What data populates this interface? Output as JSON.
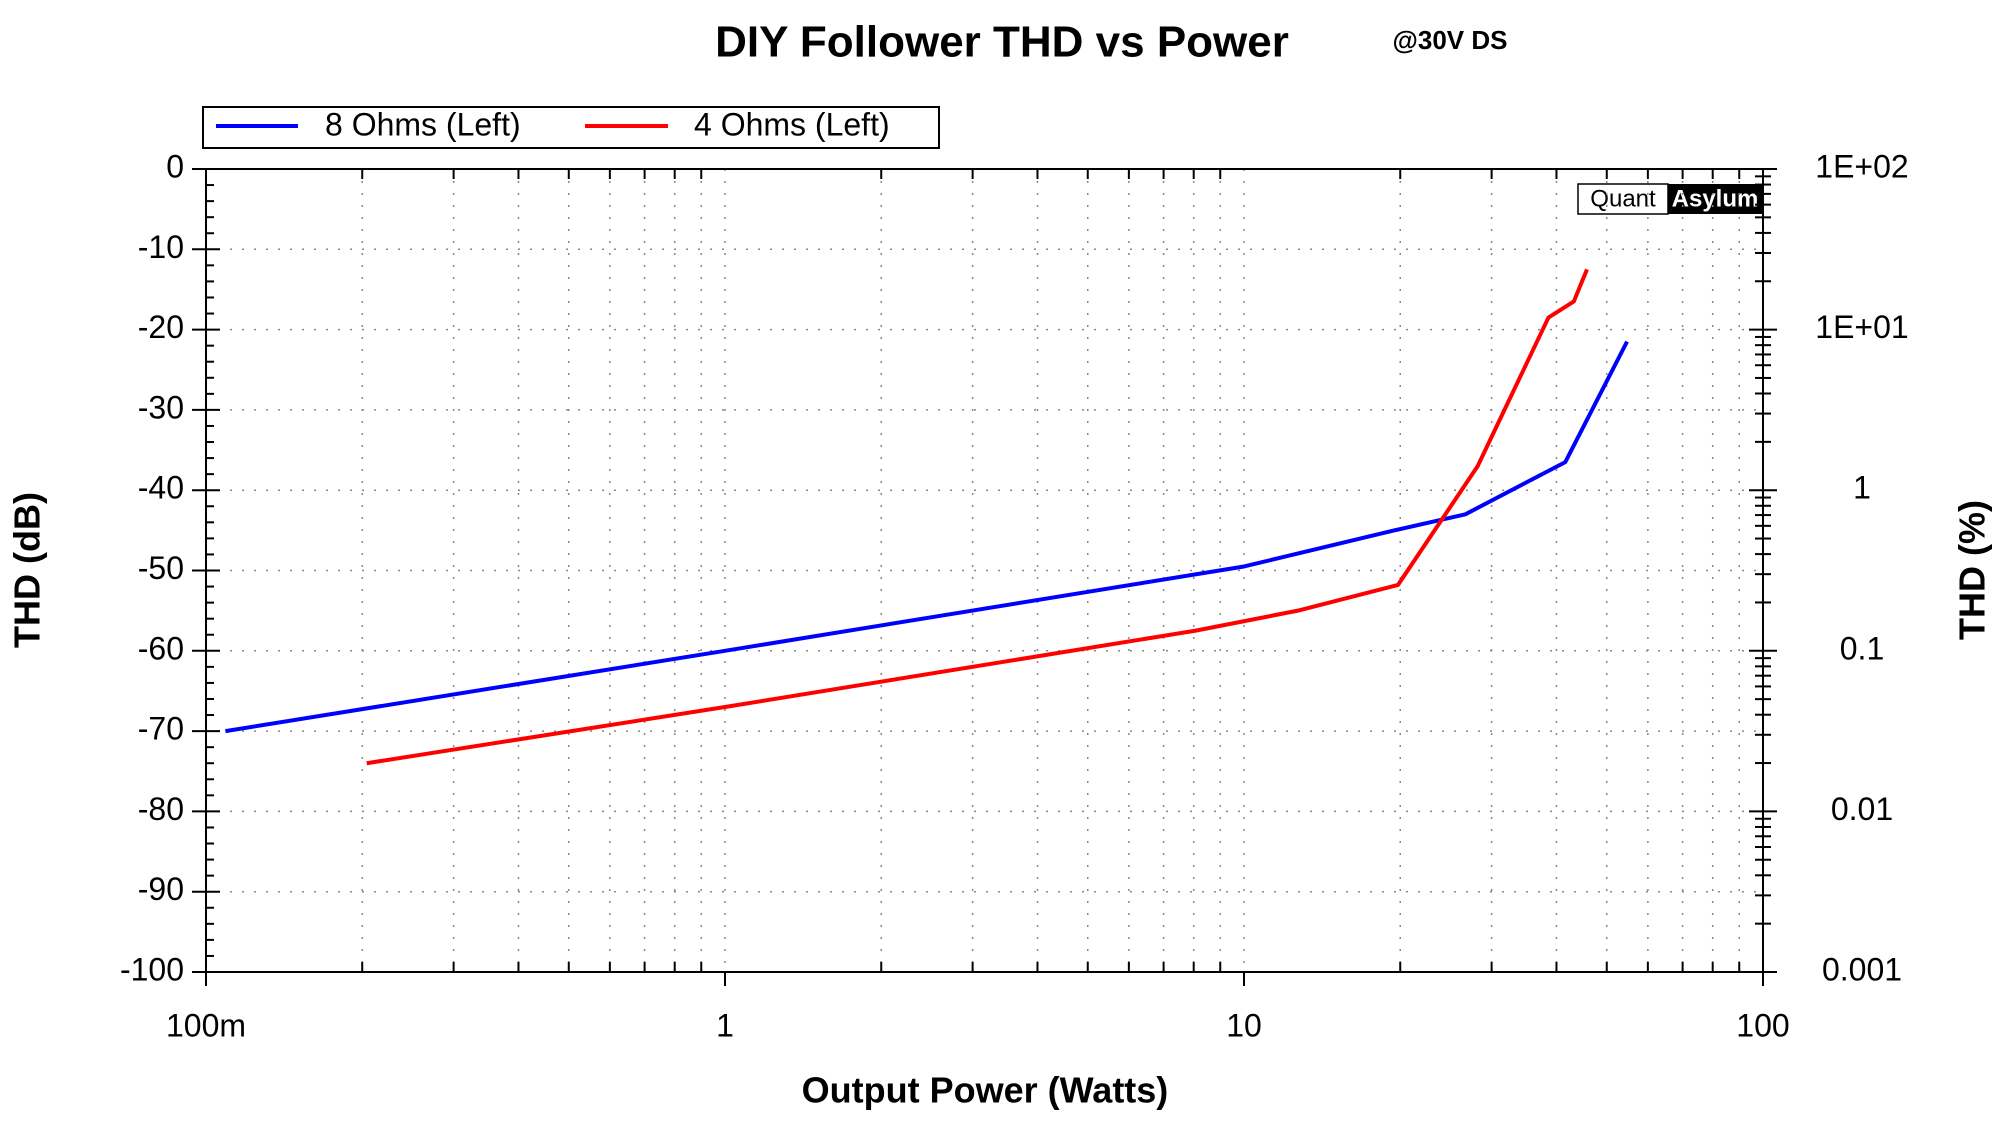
{
  "chart_data": {
    "type": "line",
    "title": "DIY Follower THD vs Power",
    "subtitle": "@30V DS",
    "x_label": "Output Power (Watts)",
    "y_label": "THD (dB)",
    "y2_label": "THD (%)",
    "watermark": {
      "left": "Quant",
      "right": "Asylum"
    },
    "x_log": true,
    "y2_log": true,
    "grid": true,
    "legend": "top-left",
    "xlim": [
      0.1,
      100
    ],
    "xticks": [
      {
        "value": 0.1,
        "label": "100m"
      },
      1,
      10,
      100
    ],
    "ylim": [
      -100,
      0
    ],
    "yticks": [
      0,
      -10,
      -20,
      -30,
      -40,
      -50,
      -60,
      -70,
      -80,
      -90,
      -100
    ],
    "y2lim": [
      0.001,
      100
    ],
    "y2ticks": [
      {
        "value": 100,
        "label": "1E+02"
      },
      {
        "value": 10,
        "label": "1E+01"
      },
      1,
      0.1,
      0.01,
      0.001
    ],
    "series": [
      {
        "name": "8 Ohms (Left)",
        "color": "#0000ff",
        "x": [
          0.109,
          1.0,
          10,
          19.5,
          26.7,
          41.6,
          54.7
        ],
        "values": [
          -70,
          -60,
          -49.5,
          -45,
          -43,
          -36.5,
          -21.5
        ]
      },
      {
        "name": "4 Ohms (Left)",
        "color": "#ff0000",
        "x": [
          0.204,
          1.0,
          8.05,
          12.7,
          19.8,
          28.2,
          38.6,
          43.2,
          45.8
        ],
        "values": [
          -74,
          -67,
          -57.5,
          -55,
          -51.8,
          -37,
          -18.5,
          -16.5,
          -12.5
        ]
      }
    ]
  }
}
